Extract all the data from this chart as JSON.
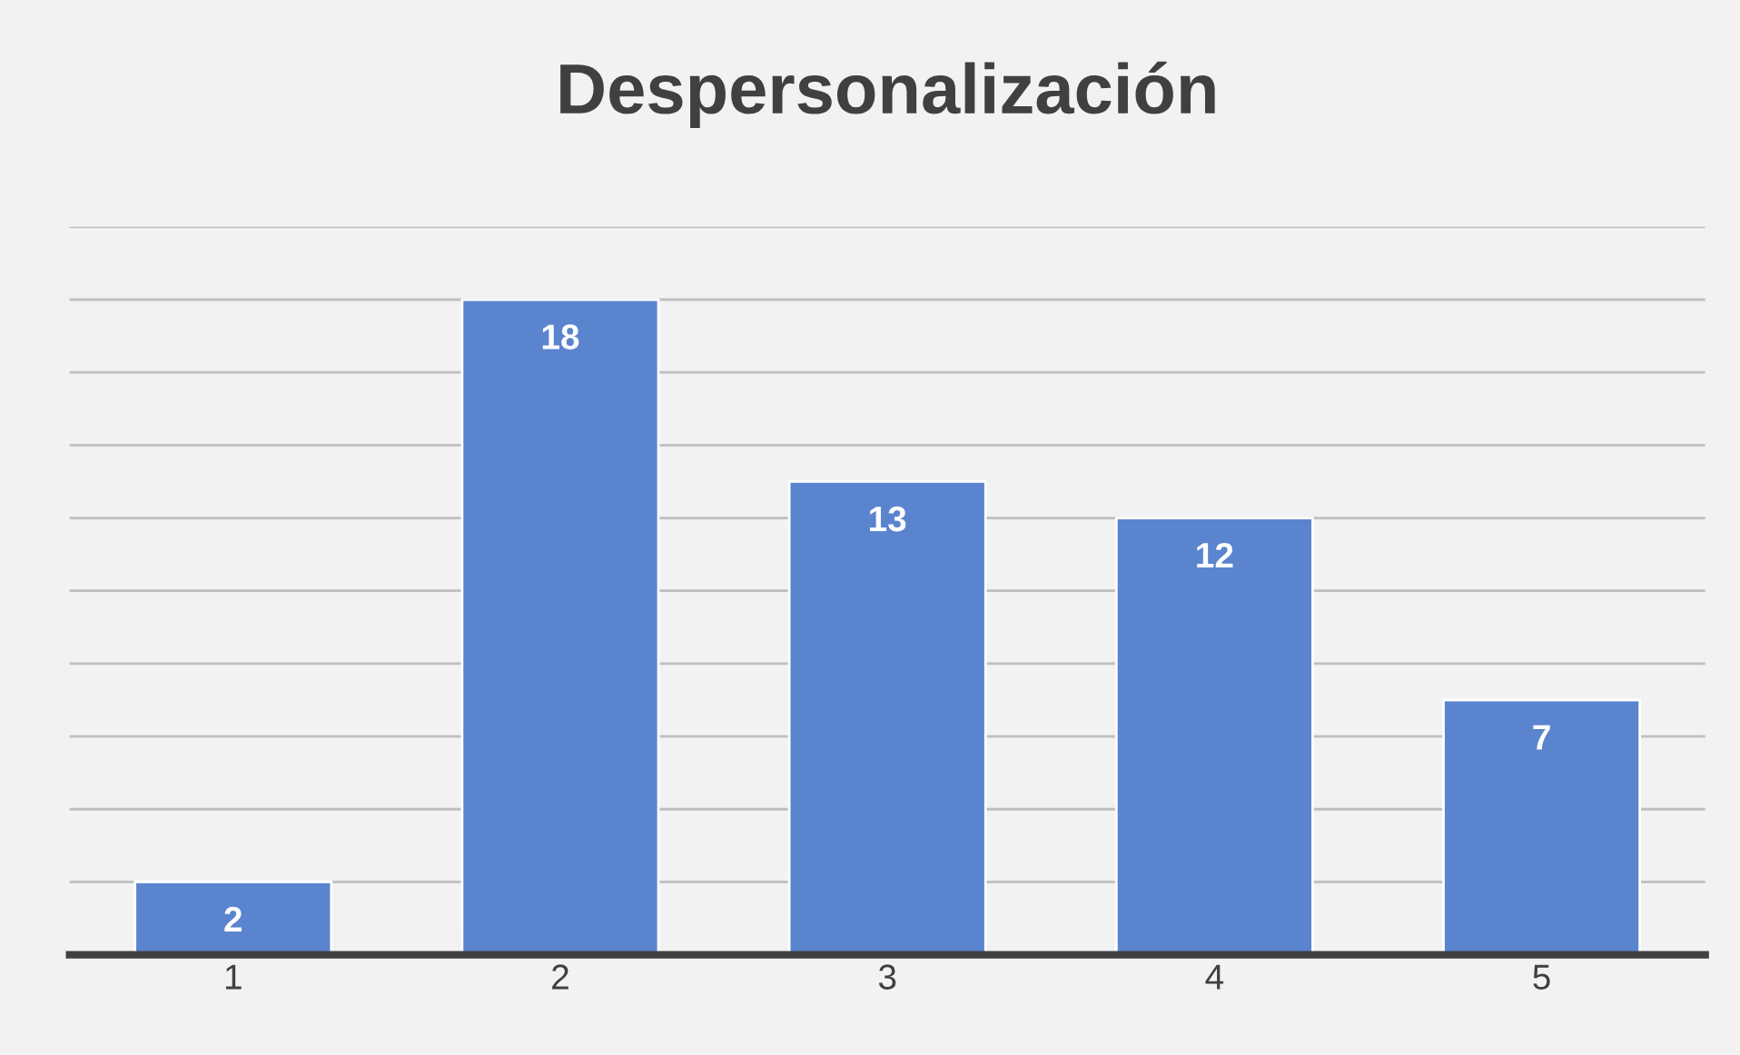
{
  "chart_data": {
    "type": "bar",
    "title": "Despersonalización",
    "categories": [
      "1",
      "2",
      "3",
      "4",
      "5"
    ],
    "values": [
      2,
      18,
      13,
      12,
      7
    ],
    "color": "#5b84cf",
    "data_labels": true,
    "ylim": [
      0,
      20
    ],
    "yticks": [
      {
        "value": 0,
        "label": null
      },
      {
        "value": 2,
        "label": null
      },
      {
        "value": 4,
        "label": null
      },
      {
        "value": 6,
        "label": null
      },
      {
        "value": 8,
        "label": null
      },
      {
        "value": 10,
        "label": null
      },
      {
        "value": 12,
        "label": null
      },
      {
        "value": 14,
        "label": null
      },
      {
        "value": 16,
        "label": null
      },
      {
        "value": 18,
        "label": null
      },
      {
        "value": 20,
        "label": null
      }
    ],
    "tick_labels": "x",
    "grid": "y"
  }
}
